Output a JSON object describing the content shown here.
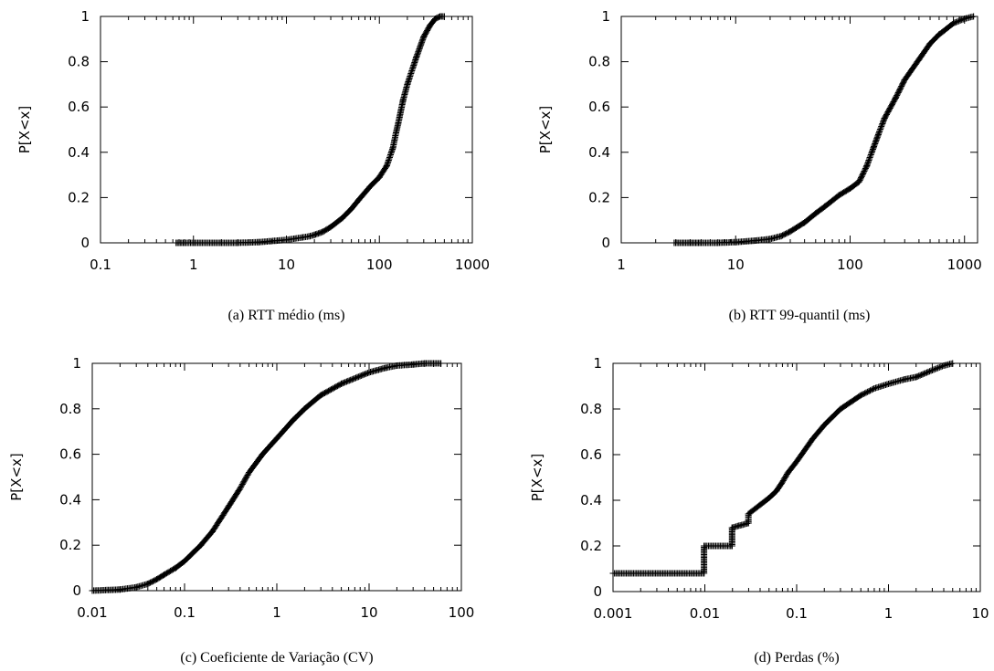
{
  "chart_data": [
    {
      "type": "line",
      "caption": "(a)  RTT médio (ms)",
      "ylabel": "P[X<x]",
      "xscale": "log",
      "xlim": [
        0.1,
        1000
      ],
      "ylim": [
        0,
        1
      ],
      "x_ticks": [
        "0.1",
        "1",
        "10",
        "100",
        "1000"
      ],
      "y_ticks": [
        "0",
        "0.2",
        "0.4",
        "0.6",
        "0.8",
        "1"
      ],
      "grid": false,
      "series": [
        {
          "x": [
            0.65,
            0.8,
            1,
            2,
            3,
            5,
            8,
            10,
            12,
            15,
            18,
            20,
            25,
            30,
            40,
            50,
            60,
            80,
            100,
            120,
            140,
            150,
            160,
            180,
            200,
            250,
            300,
            350,
            400,
            450,
            500
          ],
          "y": [
            0,
            0,
            0,
            0,
            0,
            0.003,
            0.01,
            0.013,
            0.018,
            0.024,
            0.03,
            0.035,
            0.05,
            0.07,
            0.11,
            0.15,
            0.19,
            0.25,
            0.29,
            0.34,
            0.42,
            0.48,
            0.53,
            0.63,
            0.7,
            0.82,
            0.91,
            0.96,
            0.99,
            1.0,
            1.0
          ]
        }
      ]
    },
    {
      "type": "line",
      "caption": "(b)  RTT 99-quantil (ms)",
      "ylabel": "P[X<x]",
      "xscale": "log",
      "xlim": [
        1,
        1300
      ],
      "ylim": [
        0,
        1
      ],
      "x_ticks": [
        "1",
        "10",
        "100",
        "1000"
      ],
      "y_ticks": [
        "0",
        "0.2",
        "0.4",
        "0.6",
        "0.8",
        "1"
      ],
      "grid": false,
      "series": [
        {
          "x": [
            2.9,
            4,
            5,
            7,
            10,
            15,
            20,
            25,
            30,
            40,
            50,
            60,
            80,
            100,
            120,
            140,
            160,
            180,
            200,
            250,
            300,
            400,
            500,
            600,
            800,
            1000,
            1200
          ],
          "y": [
            0,
            0,
            0,
            0,
            0.003,
            0.01,
            0.017,
            0.03,
            0.05,
            0.09,
            0.13,
            0.16,
            0.21,
            0.24,
            0.27,
            0.34,
            0.42,
            0.49,
            0.55,
            0.64,
            0.72,
            0.81,
            0.88,
            0.92,
            0.97,
            0.99,
            1.0
          ]
        }
      ]
    },
    {
      "type": "line",
      "caption": "(c)  Coeficiente de Variação (CV)",
      "ylabel": "P[X<x]",
      "xscale": "log",
      "xlim": [
        0.01,
        100
      ],
      "ylim": [
        0,
        1
      ],
      "x_ticks": [
        "0.01",
        "0.1",
        "1",
        "10",
        "100"
      ],
      "y_ticks": [
        "0",
        "0.2",
        "0.4",
        "0.6",
        "0.8",
        "1"
      ],
      "grid": false,
      "series": [
        {
          "x": [
            0.01,
            0.02,
            0.03,
            0.04,
            0.05,
            0.06,
            0.08,
            0.1,
            0.15,
            0.2,
            0.3,
            0.4,
            0.5,
            0.7,
            1,
            1.5,
            2,
            3,
            5,
            10,
            15,
            20,
            30,
            40,
            60
          ],
          "y": [
            0,
            0.005,
            0.015,
            0.03,
            0.05,
            0.07,
            0.1,
            0.13,
            0.2,
            0.26,
            0.37,
            0.45,
            0.52,
            0.6,
            0.67,
            0.75,
            0.8,
            0.86,
            0.91,
            0.96,
            0.98,
            0.99,
            0.995,
            1.0,
            1.0
          ]
        }
      ]
    },
    {
      "type": "line",
      "caption": "(d)  Perdas (%)",
      "ylabel": "P[X<x]",
      "xscale": "log",
      "xlim": [
        0.001,
        10
      ],
      "ylim": [
        0,
        1
      ],
      "x_ticks": [
        "0.001",
        "0.01",
        "0.1",
        "1",
        "10"
      ],
      "y_ticks": [
        "0",
        "0.2",
        "0.4",
        "0.6",
        "0.8",
        "1"
      ],
      "grid": false,
      "series": [
        {
          "x": [
            0.001,
            0.0098,
            0.0098,
            0.0198,
            0.0198,
            0.0298,
            0.0298,
            0.04,
            0.05,
            0.06,
            0.07,
            0.08,
            0.1,
            0.15,
            0.2,
            0.3,
            0.5,
            0.7,
            1,
            1.5,
            2,
            3,
            4,
            5
          ],
          "y": [
            0.08,
            0.08,
            0.2,
            0.2,
            0.28,
            0.3,
            0.34,
            0.38,
            0.41,
            0.44,
            0.48,
            0.52,
            0.57,
            0.67,
            0.73,
            0.8,
            0.86,
            0.89,
            0.91,
            0.93,
            0.94,
            0.97,
            0.99,
            1.0
          ]
        }
      ]
    }
  ]
}
